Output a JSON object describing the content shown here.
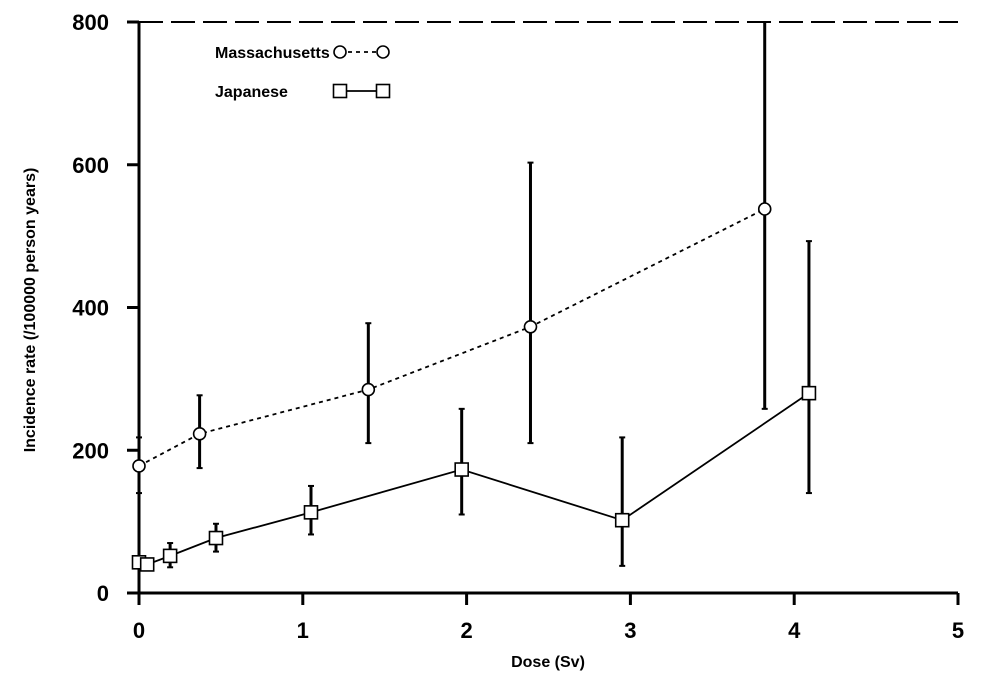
{
  "chart_data": {
    "type": "line",
    "title": "",
    "xlabel": "Dose (Sv)",
    "ylabel": "Incidence rate (/100000 person years)",
    "xlim": [
      0,
      5
    ],
    "ylim": [
      0,
      800
    ],
    "x_ticks": [
      0,
      1,
      2,
      3,
      4,
      5
    ],
    "y_ticks": [
      0,
      200,
      400,
      600,
      800
    ],
    "grid": false,
    "legend_position": "top-left",
    "series": [
      {
        "name": "Massachusetts",
        "marker": "circle",
        "line_style": "dotted",
        "color": "#000000",
        "points": [
          {
            "x": 0.0,
            "y": 178,
            "lo": 140,
            "hi": 218
          },
          {
            "x": 0.37,
            "y": 223,
            "lo": 175,
            "hi": 277
          },
          {
            "x": 1.4,
            "y": 285,
            "lo": 210,
            "hi": 378
          },
          {
            "x": 2.39,
            "y": 373,
            "lo": 210,
            "hi": 603
          },
          {
            "x": 3.82,
            "y": 538,
            "lo": 258,
            "hi": 800
          }
        ]
      },
      {
        "name": "Japanese",
        "marker": "square",
        "line_style": "solid",
        "color": "#000000",
        "points": [
          {
            "x": 0.0,
            "y": 43,
            "lo": 43,
            "hi": 43
          },
          {
            "x": 0.05,
            "y": 40,
            "lo": 40,
            "hi": 40
          },
          {
            "x": 0.19,
            "y": 52,
            "lo": 36,
            "hi": 70
          },
          {
            "x": 0.47,
            "y": 77,
            "lo": 58,
            "hi": 97
          },
          {
            "x": 1.05,
            "y": 113,
            "lo": 82,
            "hi": 150
          },
          {
            "x": 1.97,
            "y": 173,
            "lo": 110,
            "hi": 258
          },
          {
            "x": 2.95,
            "y": 102,
            "lo": 38,
            "hi": 218
          },
          {
            "x": 4.09,
            "y": 280,
            "lo": 140,
            "hi": 493
          }
        ]
      }
    ]
  }
}
